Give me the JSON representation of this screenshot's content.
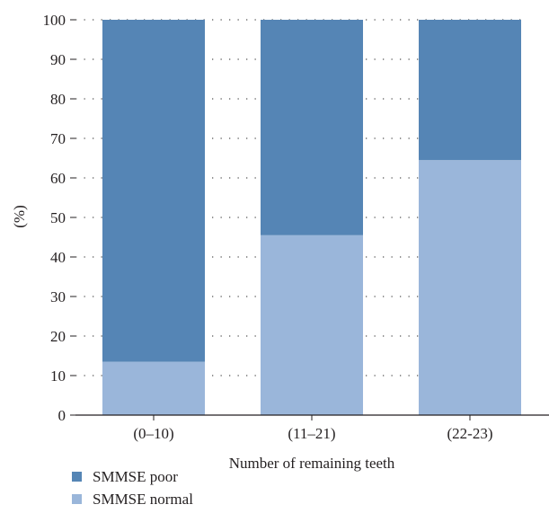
{
  "chart_data": {
    "type": "bar",
    "stacked": true,
    "categories": [
      "(0–10)",
      "(11–21)",
      "(22-23)"
    ],
    "series": [
      {
        "name": "SMMSE normal",
        "values": [
          13.5,
          45.5,
          64.5
        ],
        "color": "#9ab6da"
      },
      {
        "name": "SMMSE poor",
        "values": [
          86.5,
          54.5,
          35.5
        ],
        "color": "#5585b5"
      }
    ],
    "xlabel": "Number of remaining teeth",
    "ylabel": "(%)",
    "ylim": [
      0,
      100
    ],
    "yticks": [
      0,
      10,
      20,
      30,
      40,
      50,
      60,
      70,
      80,
      90,
      100
    ],
    "grid": "dotted horizontal",
    "legend_position": "bottom-left"
  },
  "legend": [
    {
      "label": "SMMSE poor",
      "color": "#5585b5"
    },
    {
      "label": "SMMSE normal",
      "color": "#9ab6da"
    }
  ]
}
